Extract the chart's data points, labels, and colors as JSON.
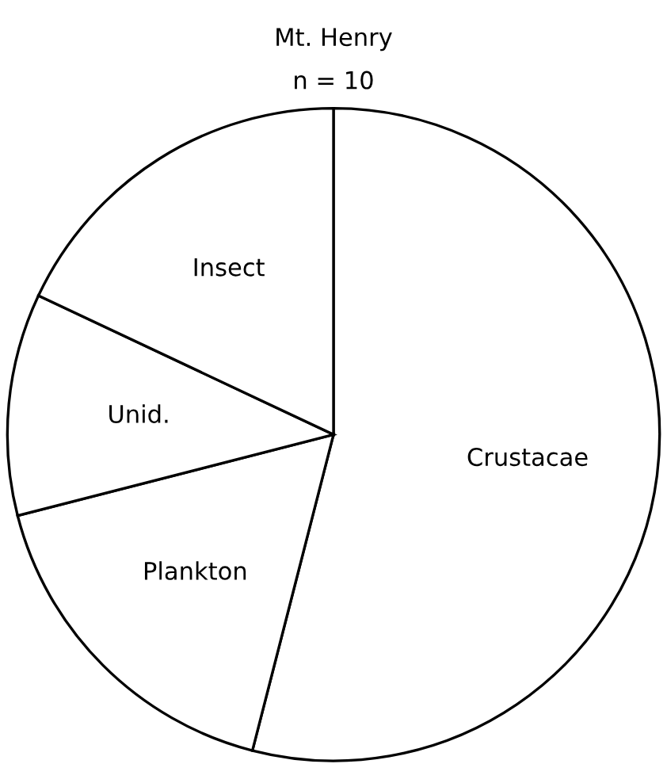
{
  "chart_data": {
    "type": "pie",
    "title": "Mt. Henry",
    "subtitle": "n = 10",
    "categories": [
      "Crustacae",
      "Plankton",
      "Unid.",
      "Insect"
    ],
    "values": [
      54,
      17,
      11,
      18
    ],
    "colors": [
      "#ffffff",
      "#ffffff",
      "#ffffff",
      "#ffffff"
    ]
  }
}
